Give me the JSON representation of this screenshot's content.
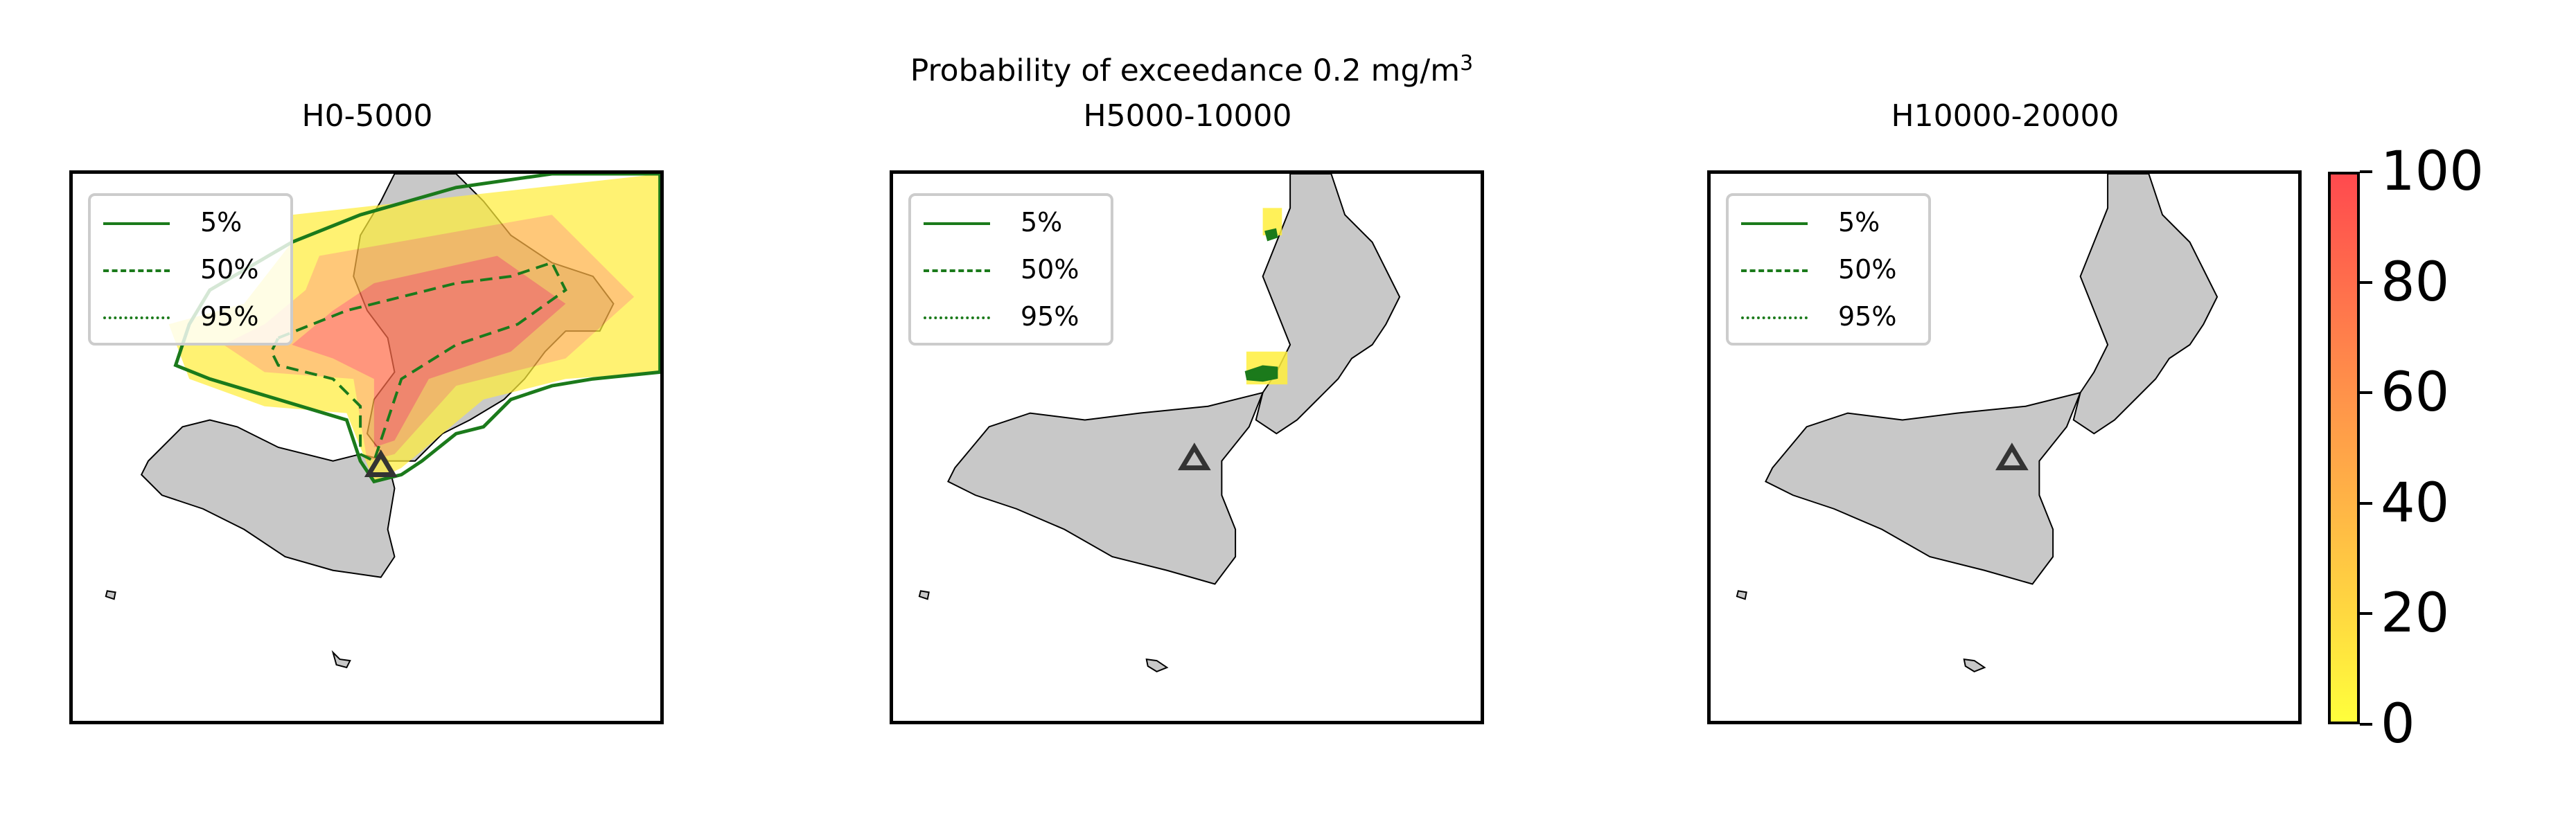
{
  "figure": {
    "title_main": "Probability of exceedance 0.2 mg/m",
    "title_sup": "3"
  },
  "panels": [
    {
      "title": "H0-5000",
      "legend": [
        "5%",
        "50%",
        "95%"
      ],
      "probability_grid": "high",
      "vent_marker": "triangle-icon"
    },
    {
      "title": "H5000-10000",
      "legend": [
        "5%",
        "50%",
        "95%"
      ],
      "probability_grid": "low",
      "vent_marker": "triangle-icon"
    },
    {
      "title": "H10000-20000",
      "legend": [
        "5%",
        "50%",
        "95%"
      ],
      "probability_grid": "none",
      "vent_marker": "triangle-icon"
    }
  ],
  "colorbar": {
    "ticks": [
      "0",
      "20",
      "40",
      "60",
      "80",
      "100"
    ],
    "range": [
      0,
      100
    ],
    "colors": {
      "low": "#ffff3c",
      "high": "#ff4a4e"
    }
  },
  "colors": {
    "contour": "#1b7a1b",
    "land": "#c8c8c8",
    "coast": "#000000"
  }
}
